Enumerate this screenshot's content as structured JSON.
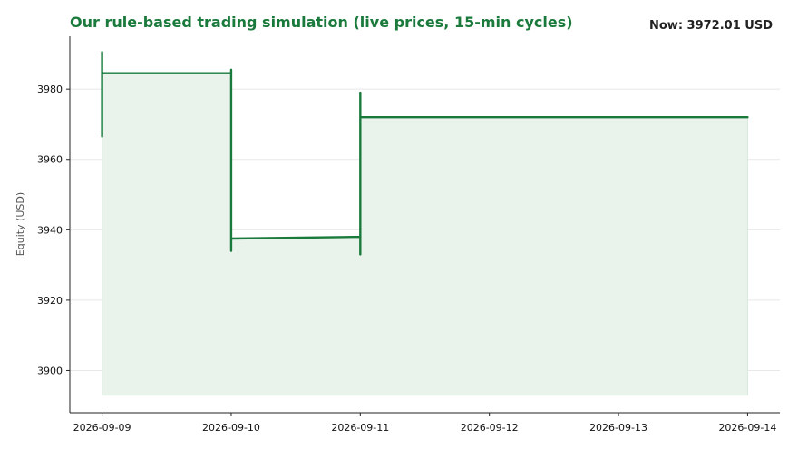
{
  "title": "Our rule-based trading simulation (live prices, 15-min cycles)",
  "now_label": "Now: 3972.01 USD",
  "colors": {
    "accent": "#1a7a3c",
    "fill": "#e9f3ec",
    "grid": "#e8e8e8",
    "axis": "#222222"
  },
  "chart_data": {
    "type": "area",
    "title": "Our rule-based trading simulation (live prices, 15-min cycles)",
    "ylabel": "Equity (USD)",
    "xlabel": "",
    "xlim": [
      "2026-09-08T18:00",
      "2026-09-14T06:00"
    ],
    "ylim": [
      3888,
      3995
    ],
    "yticks": [
      3900,
      3920,
      3940,
      3960,
      3980
    ],
    "xticks": [
      "2026-09-09",
      "2026-09-10",
      "2026-09-11",
      "2026-09-12",
      "2026-09-13",
      "2026-09-14"
    ],
    "baseline": 3893,
    "grid": "horizontal",
    "series": [
      {
        "points": [
          [
            "2026-09-09T00:00",
            3966.5
          ],
          [
            "2026-09-09T00:00",
            3990.5
          ],
          [
            "2026-09-09T00:00",
            3967
          ],
          [
            "2026-09-09T00:00",
            3989
          ],
          [
            "2026-09-09T00:00",
            3984.5
          ],
          [
            "2026-09-10T00:00",
            3984.5
          ],
          [
            "2026-09-10T00:00",
            3934
          ],
          [
            "2026-09-10T00:00",
            3985.5
          ],
          [
            "2026-09-10T00:00",
            3935
          ],
          [
            "2026-09-10T00:00",
            3937.5
          ],
          [
            "2026-09-11T00:00",
            3938
          ],
          [
            "2026-09-11T00:00",
            3933
          ],
          [
            "2026-09-11T00:00",
            3979
          ],
          [
            "2026-09-11T00:00",
            3972
          ],
          [
            "2026-09-14T00:00",
            3972
          ]
        ]
      }
    ]
  }
}
